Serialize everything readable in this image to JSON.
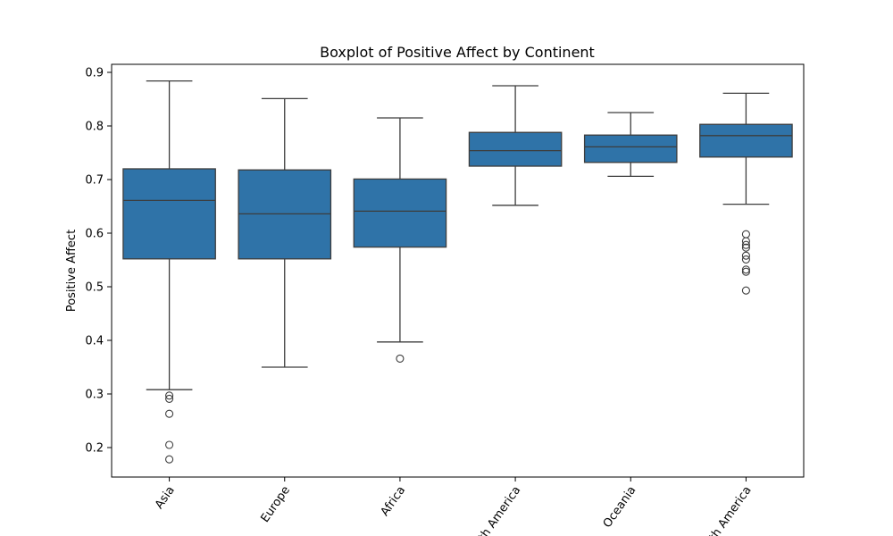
{
  "chart_data": {
    "type": "boxplot",
    "title": "Boxplot of Positive Affect by Continent",
    "xlabel": "",
    "ylabel": "Positive Affect",
    "ylim": [
      0.145,
      0.915
    ],
    "yticks": [
      0.2,
      0.3,
      0.4,
      0.5,
      0.6,
      0.7,
      0.8,
      0.9
    ],
    "ytick_labels": [
      "0.2",
      "0.3",
      "0.4",
      "0.5",
      "0.6",
      "0.7",
      "0.8",
      "0.9"
    ],
    "categories": [
      "Asia",
      "Europe",
      "Africa",
      "North America",
      "Oceania",
      "South America"
    ],
    "grid": false,
    "colors": {
      "box": "#2f73a8",
      "line": "#3d3d3d"
    },
    "boxes": [
      {
        "category": "Asia",
        "whisker_low": 0.308,
        "q1": 0.552,
        "median": 0.661,
        "q3": 0.72,
        "whisker_high": 0.884,
        "outliers": [
          0.297,
          0.291,
          0.263,
          0.205,
          0.178
        ]
      },
      {
        "category": "Europe",
        "whisker_low": 0.35,
        "q1": 0.552,
        "median": 0.636,
        "q3": 0.718,
        "whisker_high": 0.851,
        "outliers": []
      },
      {
        "category": "Africa",
        "whisker_low": 0.397,
        "q1": 0.574,
        "median": 0.641,
        "q3": 0.701,
        "whisker_high": 0.815,
        "outliers": [
          0.366
        ]
      },
      {
        "category": "North America",
        "whisker_low": 0.652,
        "q1": 0.725,
        "median": 0.754,
        "q3": 0.788,
        "whisker_high": 0.875,
        "outliers": []
      },
      {
        "category": "Oceania",
        "whisker_low": 0.706,
        "q1": 0.732,
        "median": 0.761,
        "q3": 0.783,
        "whisker_high": 0.825,
        "outliers": []
      },
      {
        "category": "South America",
        "whisker_low": 0.654,
        "q1": 0.742,
        "median": 0.782,
        "q3": 0.803,
        "whisker_high": 0.861,
        "outliers": [
          0.598,
          0.585,
          0.578,
          0.573,
          0.558,
          0.551,
          0.532,
          0.528,
          0.493
        ]
      }
    ]
  }
}
